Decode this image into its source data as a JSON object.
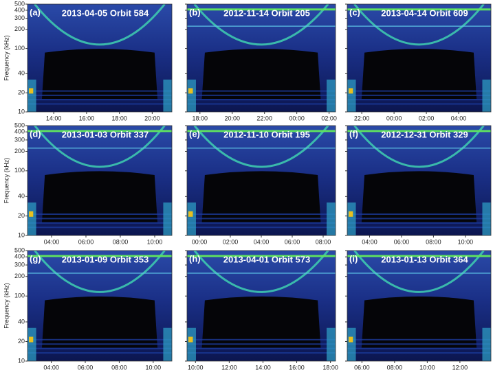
{
  "y_label": "Frequency (kHz)",
  "yscale": "log",
  "ylim": [
    10,
    500
  ],
  "yticks": [
    10,
    20,
    40,
    100,
    200,
    300,
    400,
    500
  ],
  "panels": [
    {
      "label": "(a)",
      "title": "2013-04-05 Orbit 584",
      "xlim": [
        12.4,
        21.2
      ],
      "xticks": [
        {
          "value": 14,
          "label": "14:00"
        },
        {
          "value": 16,
          "label": "16:00"
        },
        {
          "value": 18,
          "label": "18:00"
        },
        {
          "value": 20,
          "label": "20:00"
        }
      ]
    },
    {
      "label": "(b)",
      "title": "2012-11-14 Orbit 205",
      "xlim": [
        17.2,
        26.4
      ],
      "xticks": [
        {
          "value": 18,
          "label": "18:00"
        },
        {
          "value": 20,
          "label": "20:00"
        },
        {
          "value": 22,
          "label": "22:00"
        },
        {
          "value": 24,
          "label": "00:00"
        },
        {
          "value": 26,
          "label": "02:00"
        }
      ]
    },
    {
      "label": "(c)",
      "title": "2013-04-14 Orbit 609",
      "xlim": [
        21.1,
        30.0
      ],
      "xticks": [
        {
          "value": 22,
          "label": "22:00"
        },
        {
          "value": 24,
          "label": "00:00"
        },
        {
          "value": 26,
          "label": "02:00"
        },
        {
          "value": 28,
          "label": "04:00"
        }
      ]
    },
    {
      "label": "(d)",
      "title": "2013-01-03 Orbit 337",
      "xlim": [
        2.6,
        11.0
      ],
      "xticks": [
        {
          "value": 4,
          "label": "04:00"
        },
        {
          "value": 6,
          "label": "06:00"
        },
        {
          "value": 8,
          "label": "08:00"
        },
        {
          "value": 10,
          "label": "10:00"
        }
      ]
    },
    {
      "label": "(e)",
      "title": "2012-11-10 Orbit 195",
      "xlim": [
        -0.8,
        8.8
      ],
      "xticks": [
        {
          "value": 0,
          "label": "00:00"
        },
        {
          "value": 2,
          "label": "02:00"
        },
        {
          "value": 4,
          "label": "04:00"
        },
        {
          "value": 6,
          "label": "06:00"
        },
        {
          "value": 8,
          "label": "08:00"
        }
      ]
    },
    {
      "label": "(f)",
      "title": "2012-12-31 Orbit 329",
      "xlim": [
        2.6,
        11.6
      ],
      "xticks": [
        {
          "value": 4,
          "label": "04:00"
        },
        {
          "value": 6,
          "label": "06:00"
        },
        {
          "value": 8,
          "label": "08:00"
        },
        {
          "value": 10,
          "label": "10:00"
        }
      ]
    },
    {
      "label": "(g)",
      "title": "2013-01-09 Orbit 353",
      "xlim": [
        2.6,
        11.1
      ],
      "xticks": [
        {
          "value": 4,
          "label": "04:00"
        },
        {
          "value": 6,
          "label": "06:00"
        },
        {
          "value": 8,
          "label": "08:00"
        },
        {
          "value": 10,
          "label": "10:00"
        }
      ]
    },
    {
      "label": "(h)",
      "title": "2013-04-01 Orbit 573",
      "xlim": [
        9.5,
        18.3
      ],
      "xticks": [
        {
          "value": 10,
          "label": "10:00"
        },
        {
          "value": 12,
          "label": "12:00"
        },
        {
          "value": 14,
          "label": "14:00"
        },
        {
          "value": 16,
          "label": "16:00"
        },
        {
          "value": 18,
          "label": "18:00"
        }
      ]
    },
    {
      "label": "(i)",
      "title": "2013-01-13 Orbit 364",
      "xlim": [
        5.1,
        13.9
      ],
      "xticks": [
        {
          "value": 6,
          "label": "06:00"
        },
        {
          "value": 8,
          "label": "08:00"
        },
        {
          "value": 10,
          "label": "10:00"
        },
        {
          "value": 12,
          "label": "12:00"
        }
      ]
    }
  ]
}
